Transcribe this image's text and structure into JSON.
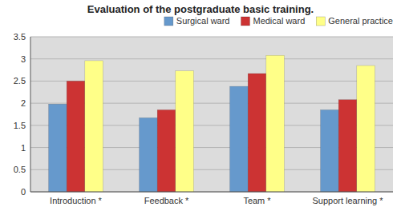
{
  "chart_data": {
    "type": "bar",
    "title": "Evaluation of the postgraduate basic training.",
    "categories": [
      "Introduction *",
      "Feedback *",
      "Team *",
      "Support learning *"
    ],
    "series": [
      {
        "name": "Surgical ward",
        "color": "#6699CC",
        "values": [
          1.98,
          1.67,
          2.38,
          1.85
        ]
      },
      {
        "name": "Medical ward",
        "color": "#CC3333",
        "values": [
          2.5,
          1.85,
          2.67,
          2.08
        ]
      },
      {
        "name": "General practice",
        "color": "#FFFF88",
        "values": [
          2.96,
          2.73,
          3.08,
          2.85
        ]
      }
    ],
    "ylim": [
      0,
      3.5
    ],
    "yticks": [
      0,
      0.5,
      1,
      1.5,
      2,
      2.5,
      3,
      3.5
    ],
    "grid": true,
    "legend": "upper right"
  }
}
